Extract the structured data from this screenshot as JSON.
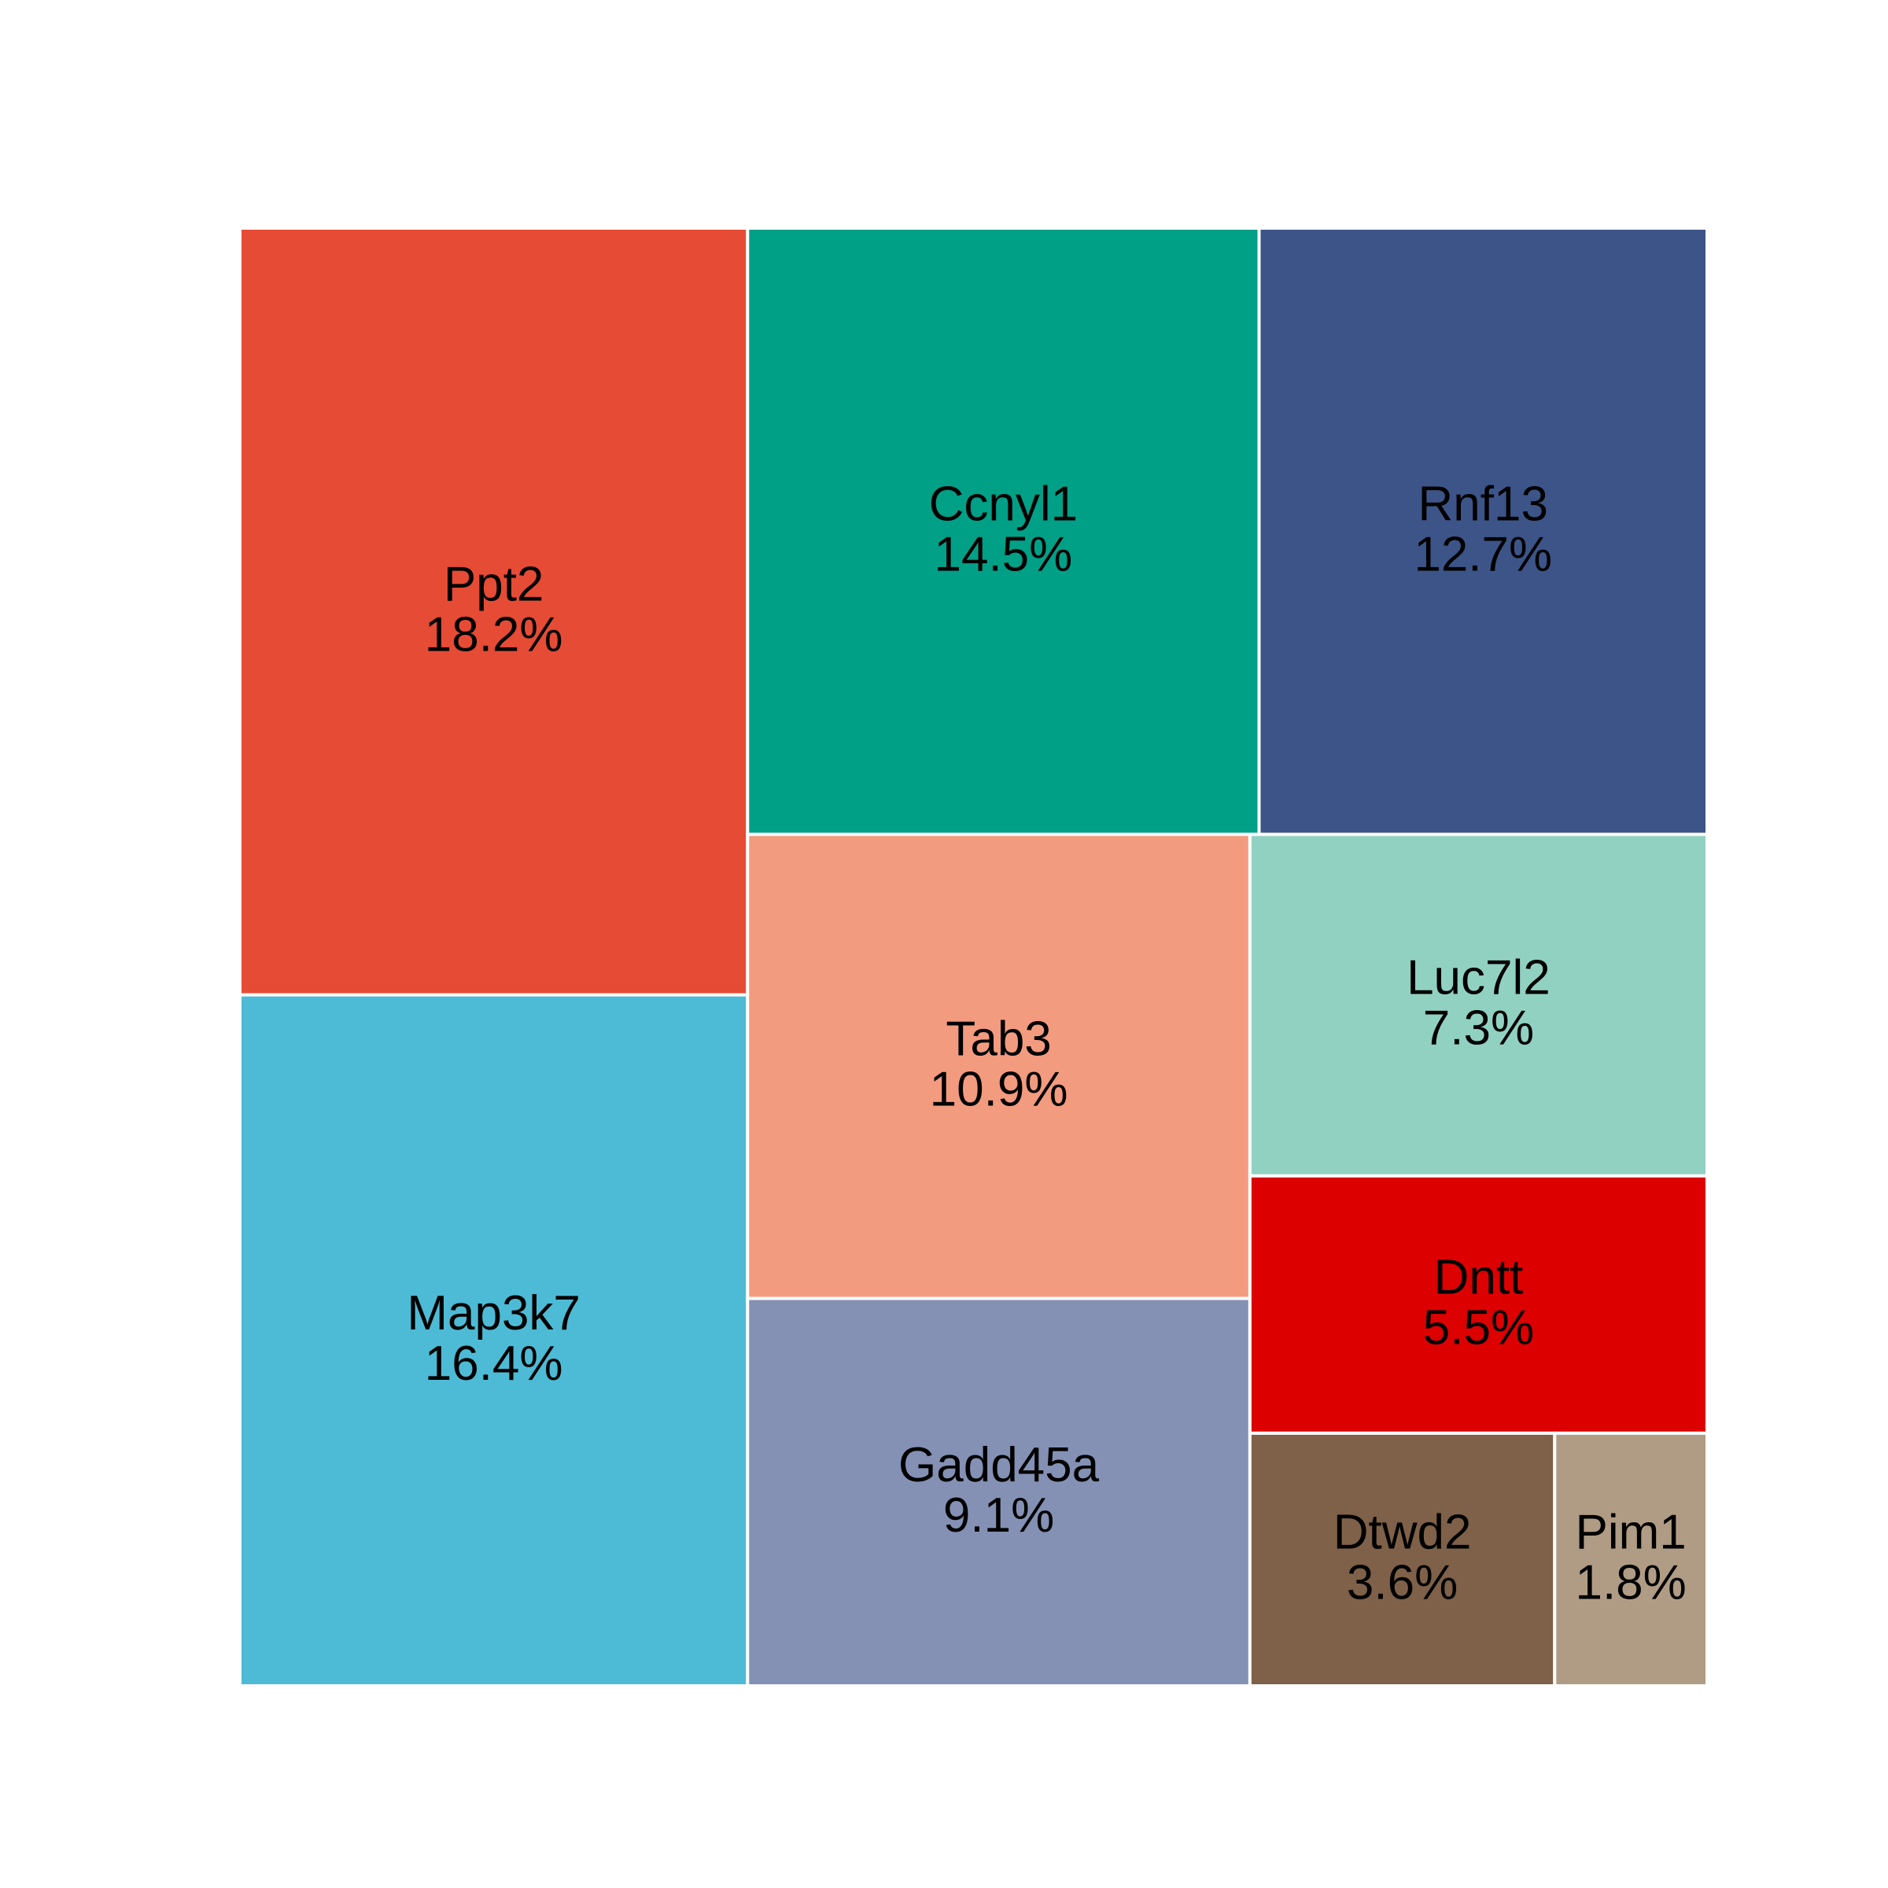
{
  "chart_data": {
    "type": "treemap",
    "items": [
      {
        "name": "Ppt2",
        "value": 18.2,
        "label": "18.2%",
        "color": "#E64B35"
      },
      {
        "name": "Map3k7",
        "value": 16.4,
        "label": "16.4%",
        "color": "#4DBBD5"
      },
      {
        "name": "Ccnyl1",
        "value": 14.5,
        "label": "14.5%",
        "color": "#00A087"
      },
      {
        "name": "Rnf13",
        "value": 12.7,
        "label": "12.7%",
        "color": "#3C5488"
      },
      {
        "name": "Tab3",
        "value": 10.9,
        "label": "10.9%",
        "color": "#F39B7F"
      },
      {
        "name": "Gadd45a",
        "value": 9.1,
        "label": "9.1%",
        "color": "#8491B4"
      },
      {
        "name": "Luc7l2",
        "value": 7.3,
        "label": "7.3%",
        "color": "#91D1C2"
      },
      {
        "name": "Dntt",
        "value": 5.5,
        "label": "5.5%",
        "color": "#DC0000"
      },
      {
        "name": "Dtwd2",
        "value": 3.6,
        "label": "3.6%",
        "color": "#7E6148"
      },
      {
        "name": "Pim1",
        "value": 1.8,
        "label": "1.8%",
        "color": "#B09C85"
      }
    ]
  }
}
